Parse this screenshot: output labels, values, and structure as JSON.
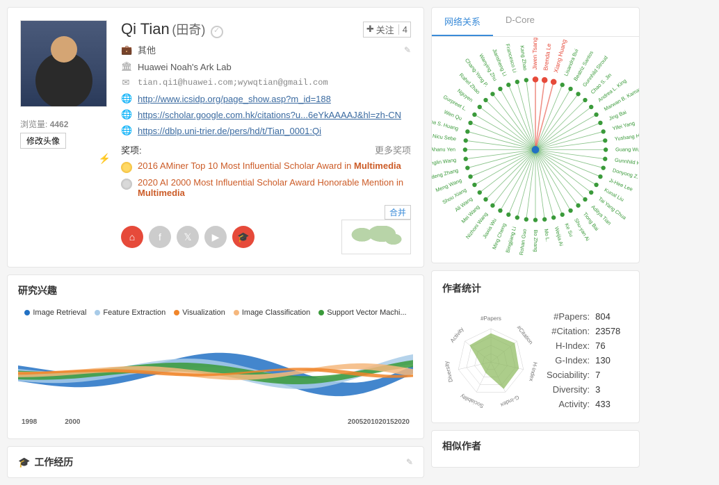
{
  "profile": {
    "name": "Qi Tian",
    "name_native": "(田奇)",
    "view_label": "浏览量:",
    "view_count": "4462",
    "edit_avatar": "修改头像",
    "follow_label": "关注",
    "follow_count": "4",
    "category": "其他",
    "affiliation": "Huawei Noah's Ark Lab",
    "email": "tian.qi1@huawei.com;wywqtian@gmail.com",
    "links": [
      "http://www.icsidp.org/page_show.asp?m_id=188",
      "https://scholar.google.com.hk/citations?u...6eYkAAAAJ&hl=zh-CN",
      "https://dblp.uni-trier.de/pers/hd/t/Tian_0001:Qi"
    ],
    "awards_label": "奖项:",
    "more_awards": "更多奖项",
    "awards": [
      {
        "medal": "gold",
        "text": "2016 AMiner Top 10 Most Influential Scholar Award in ",
        "highlight": "Multimedia"
      },
      {
        "medal": "silver",
        "text": "2020 AI 2000 Most Influential Scholar Award Honorable Mention in ",
        "highlight": "Multimedia"
      }
    ],
    "merge_btn": "合并"
  },
  "interests": {
    "title": "研究兴趣",
    "legend": [
      {
        "label": "Image Retrieval",
        "color": "#2271c4"
      },
      {
        "label": "Feature Extraction",
        "color": "#a8cbe8"
      },
      {
        "label": "Visualization",
        "color": "#f0852a"
      },
      {
        "label": "Image Classification",
        "color": "#f5b77d"
      },
      {
        "label": "Support Vector Machi...",
        "color": "#3a9a3a"
      }
    ],
    "years": [
      "1998",
      "2000",
      "2005",
      "2010",
      "2015",
      "2020"
    ]
  },
  "work": {
    "title": "工作经历"
  },
  "network": {
    "tabs": [
      {
        "label": "网络关系",
        "active": true
      },
      {
        "label": "D-Core",
        "active": false
      }
    ],
    "center_color": "#e64a3a",
    "node_color": "#3a9a3a",
    "names": [
      "Jiwen Tsang",
      "Brenda Le",
      "Xiang Huang",
      "Lisandra Bui",
      "Beatriz Santos",
      "Gunnhild Stroud",
      "Chao S. Jin",
      "Andrea L. King",
      "Marwan B. Kamani",
      "Jing Bai",
      "Yifei Yang",
      "Yushang Han",
      "Guang Wu",
      "Gunnhild Hua",
      "Donyong Z.",
      "Ji-Hee Lee",
      "Kunal Liu",
      "Tai Yang Chua",
      "Aditya Tian",
      "Tiong Bai",
      "Shu-yan Ai",
      "Ke Su",
      "Weijia Ai",
      "Mo L.",
      "Bo Zhang",
      "Rohan Guo",
      "Bingjiang Li",
      "Ming Cheng",
      "Jiaxia Wu",
      "Nizhoni Wang",
      "Mei Wang",
      "Ali Wang",
      "Shou Xiang",
      "Meng Wang",
      "Jingdeng Zhang",
      "Shanglin Wang",
      "Ahanu Yen",
      "Nicu Sebe",
      "Shikha S. Huang",
      "Wen Qu",
      "Gurpreet L.",
      "Nguyen",
      "Rahel Zhao",
      "Chang-Yong P.",
      "Wanying Zhu",
      "Jiansheng Li",
      "Francesco Li",
      "Kang Zhao"
    ]
  },
  "stats": {
    "title": "作者统计",
    "radar_labels": [
      "#Papers",
      "#Citation",
      "H-Index",
      "G-Index",
      "Sociability",
      "Diversity",
      "Activity"
    ],
    "radar_values": [
      0.85,
      0.9,
      0.85,
      0.88,
      0.35,
      0.3,
      0.8
    ],
    "radar_fill": "#8ab85a",
    "rows": [
      {
        "label": "#Papers:",
        "value": "804"
      },
      {
        "label": "#Citation:",
        "value": "23578"
      },
      {
        "label": "H-Index:",
        "value": "76"
      },
      {
        "label": "G-Index:",
        "value": "130"
      },
      {
        "label": "Sociability:",
        "value": "7"
      },
      {
        "label": "Diversity:",
        "value": "3"
      },
      {
        "label": "Activity:",
        "value": "433"
      }
    ]
  },
  "similar": {
    "title": "相似作者"
  }
}
